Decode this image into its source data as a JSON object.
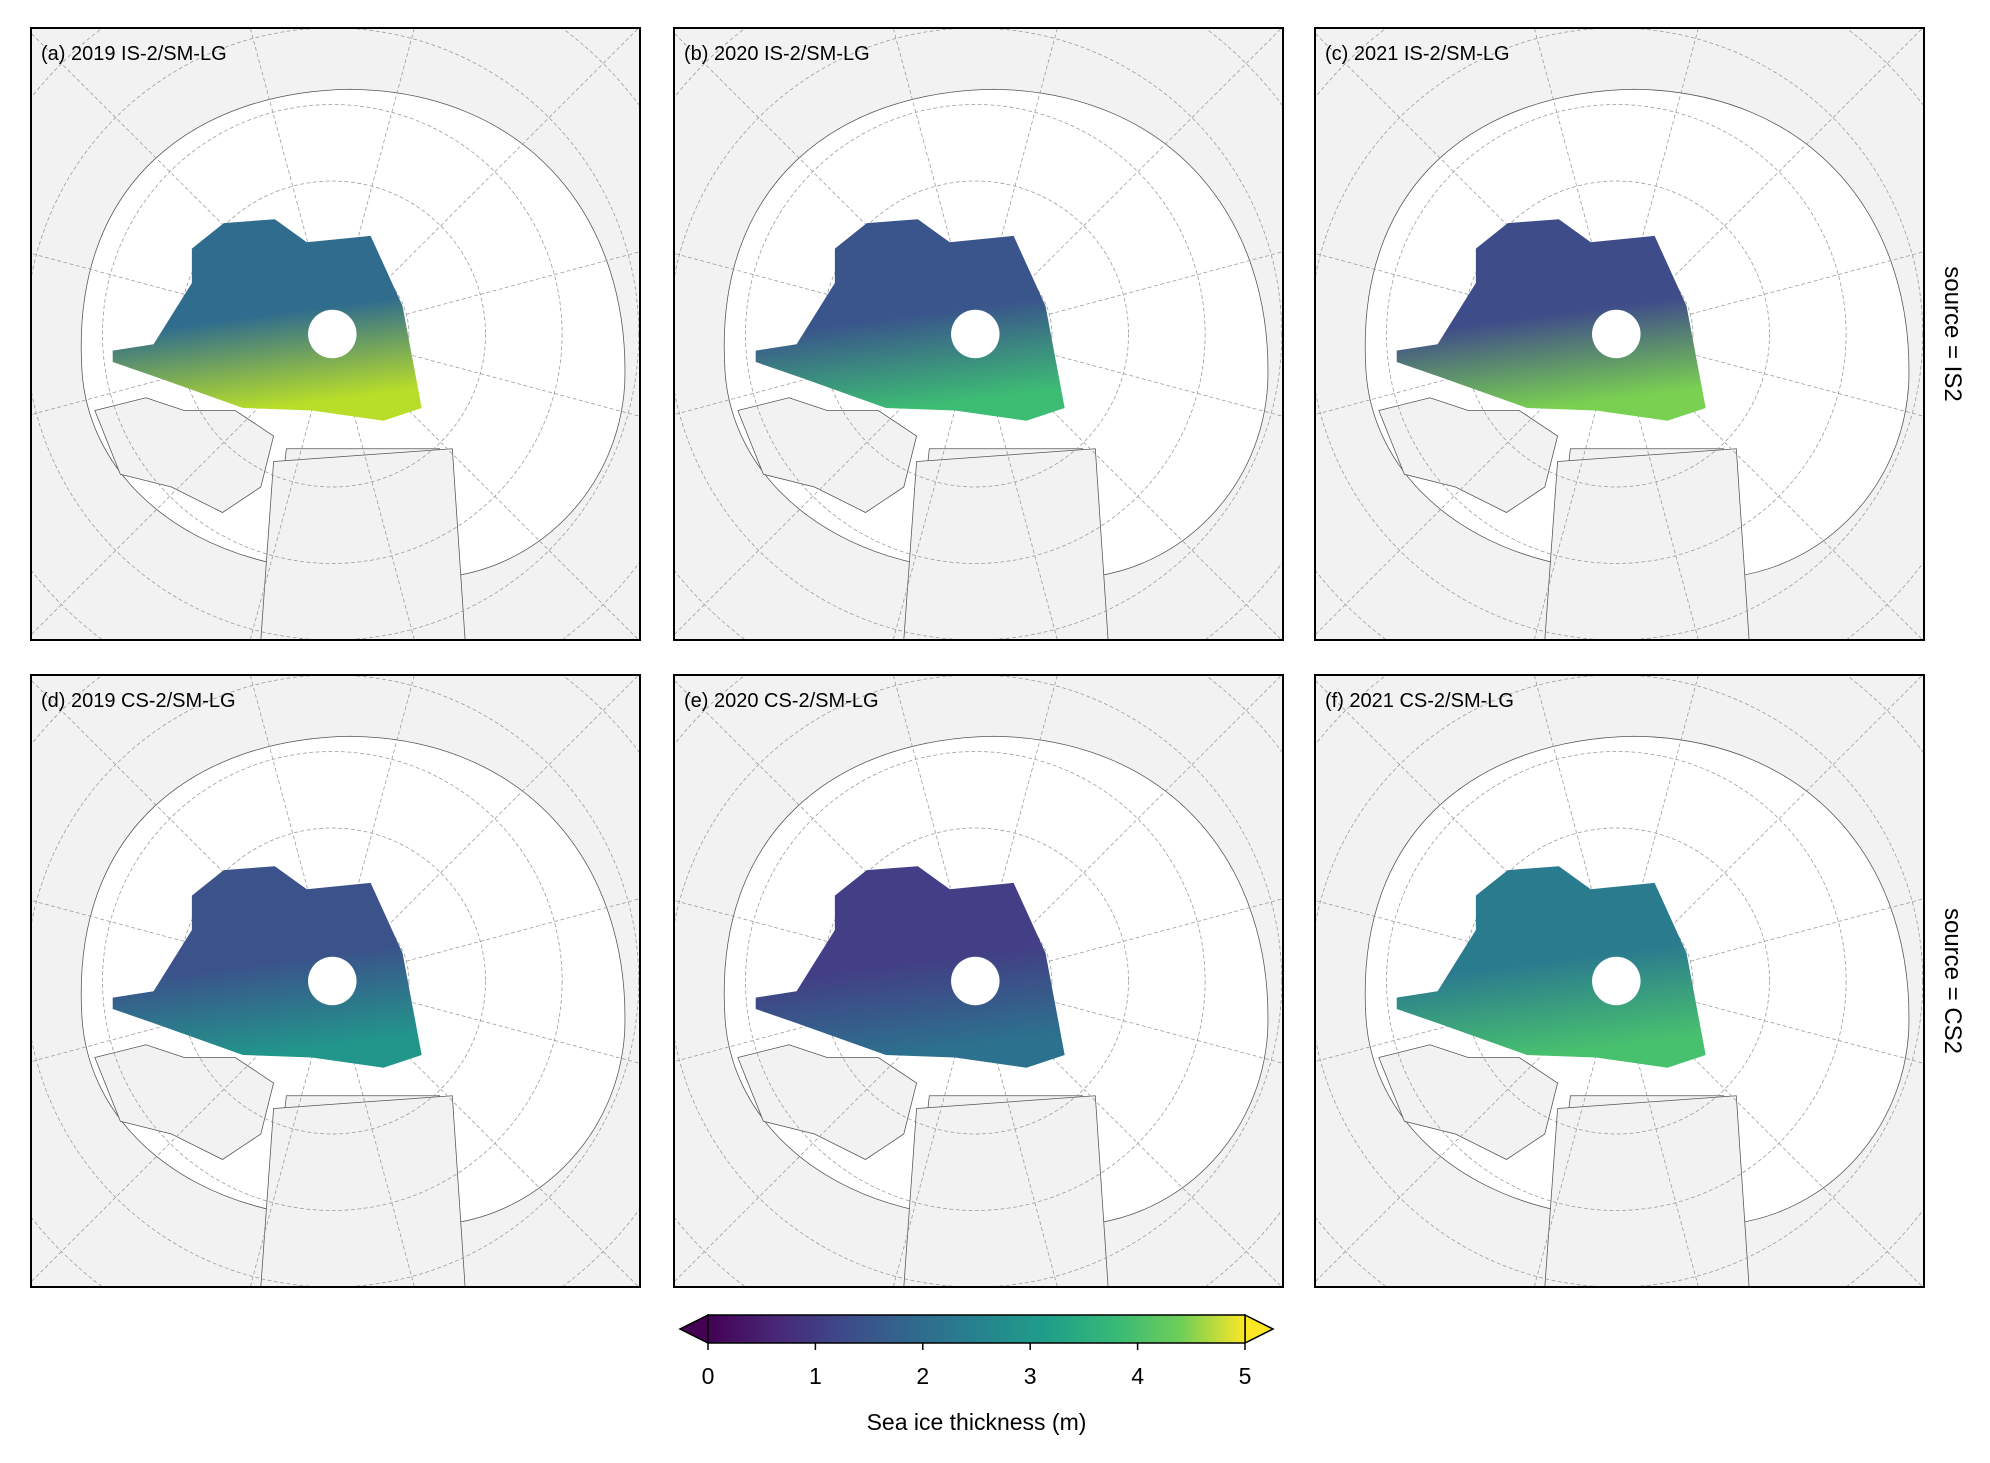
{
  "panels": [
    {
      "title": "(a) 2019 IS-2/SM-LG"
    },
    {
      "title": "(b) 2020 IS-2/SM-LG"
    },
    {
      "title": "(c) 2021 IS-2/SM-LG"
    },
    {
      "title": "(d) 2019 CS-2/SM-LG"
    },
    {
      "title": "(e) 2020 CS-2/SM-LG"
    },
    {
      "title": "(f) 2021 CS-2/SM-LG"
    }
  ],
  "row_labels": [
    "source = IS2",
    "source = CS2"
  ],
  "colorbar": {
    "label": "Sea ice thickness (m)",
    "lim": [
      0,
      5
    ],
    "ticks": [
      0,
      1,
      2,
      3,
      4,
      5
    ],
    "extend": "both"
  }
}
